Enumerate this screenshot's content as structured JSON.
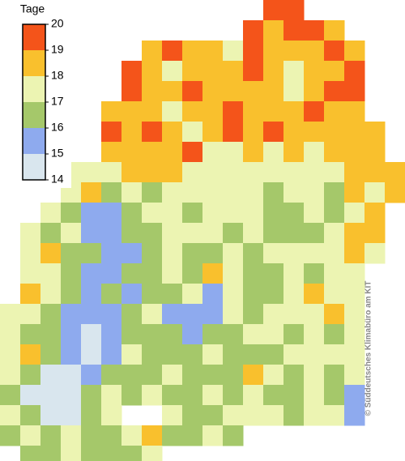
{
  "legend": {
    "title": "Tage",
    "ticks": [
      14,
      15,
      16,
      17,
      18,
      19,
      20
    ],
    "colors": [
      "#d9e6ee",
      "#8eaaee",
      "#a5c86a",
      "#ecf4b2",
      "#f9c02d",
      "#f4541a"
    ]
  },
  "copyright": "© Süddeutsches Klimabüro am KIT",
  "map": {
    "cells": [
      [
        null,
        null,
        null,
        null,
        null,
        null,
        null,
        null,
        null,
        null,
        null,
        null,
        null,
        19.5,
        19.5,
        null,
        null,
        null,
        null,
        null
      ],
      [
        null,
        null,
        null,
        null,
        null,
        null,
        null,
        null,
        null,
        null,
        null,
        null,
        19.5,
        18.5,
        19.5,
        19.5,
        18.5,
        null,
        null,
        null
      ],
      [
        null,
        null,
        null,
        null,
        null,
        null,
        null,
        18.5,
        19.5,
        18.5,
        18.5,
        17.5,
        19.5,
        18.5,
        18.5,
        18.5,
        19.5,
        18.5,
        null,
        null
      ],
      [
        null,
        null,
        null,
        null,
        null,
        null,
        19.5,
        18.5,
        17.5,
        18.5,
        18.5,
        18.5,
        19.5,
        18.5,
        17.5,
        18.5,
        18.5,
        19.5,
        null,
        null
      ],
      [
        null,
        null,
        null,
        null,
        null,
        null,
        19.5,
        18.5,
        18.5,
        19.5,
        18.5,
        18.5,
        18.5,
        18.5,
        17.5,
        18.5,
        19.5,
        19.5,
        null,
        null
      ],
      [
        null,
        null,
        null,
        null,
        null,
        18.5,
        18.5,
        18.5,
        17.5,
        18.5,
        18.5,
        19.5,
        18.5,
        18.5,
        18.5,
        19.5,
        18.5,
        18.5,
        null,
        null
      ],
      [
        null,
        null,
        null,
        null,
        null,
        19.5,
        18.5,
        19.5,
        18.5,
        17.5,
        18.5,
        19.5,
        18.5,
        19.5,
        18.5,
        18.5,
        18.5,
        18.5,
        18.5,
        null
      ],
      [
        null,
        null,
        null,
        null,
        null,
        18.5,
        18.5,
        18.5,
        18.5,
        19.5,
        17.5,
        17.5,
        18.5,
        17.5,
        18.5,
        17.5,
        18.5,
        18.5,
        18.5,
        null
      ],
      [
        null,
        null,
        null,
        17.5,
        17.5,
        17.5,
        18.5,
        18.5,
        18.5,
        17.5,
        17.5,
        17.5,
        17.5,
        17.5,
        17.5,
        17.5,
        17.5,
        18.5,
        18.5,
        18.5
      ],
      [
        null,
        null,
        null,
        17.5,
        18.5,
        16.5,
        17.5,
        16.5,
        17.5,
        17.5,
        17.5,
        17.5,
        17.5,
        16.5,
        17.5,
        17.5,
        16.5,
        18.5,
        17.5,
        18.5
      ],
      [
        null,
        null,
        17.5,
        16.5,
        15.5,
        15.5,
        16.5,
        17.5,
        17.5,
        16.5,
        17.5,
        17.5,
        17.5,
        16.5,
        16.5,
        17.5,
        16.5,
        17.5,
        18.5,
        null
      ],
      [
        null,
        17.5,
        16.5,
        17.5,
        15.5,
        15.5,
        16.5,
        16.5,
        17.5,
        17.5,
        17.5,
        16.5,
        17.5,
        16.5,
        16.5,
        16.5,
        17.5,
        18.5,
        18.5,
        null
      ],
      [
        null,
        17.5,
        18.5,
        16.5,
        16.5,
        15.5,
        15.5,
        16.5,
        17.5,
        16.5,
        16.5,
        17.5,
        16.5,
        17.5,
        17.5,
        17.5,
        17.5,
        18.5,
        17.5,
        null
      ],
      [
        null,
        17.5,
        17.5,
        16.5,
        15.5,
        15.5,
        16.5,
        16.5,
        17.5,
        16.5,
        18.5,
        17.5,
        16.5,
        16.5,
        17.5,
        16.5,
        17.5,
        17.5,
        null,
        null
      ],
      [
        null,
        18.5,
        17.5,
        16.5,
        15.5,
        16.5,
        15.5,
        16.5,
        16.5,
        17.5,
        15.5,
        17.5,
        16.5,
        16.5,
        17.5,
        18.5,
        17.5,
        17.5,
        null,
        null
      ],
      [
        17.5,
        17.5,
        16.5,
        15.5,
        15.5,
        15.5,
        16.5,
        17.5,
        15.5,
        15.5,
        15.5,
        17.5,
        16.5,
        17.5,
        17.5,
        17.5,
        18.5,
        17.5,
        null,
        null
      ],
      [
        17.5,
        16.5,
        16.5,
        15.5,
        14.5,
        15.5,
        16.5,
        16.5,
        16.5,
        15.5,
        16.5,
        16.5,
        17.5,
        17.5,
        16.5,
        17.5,
        16.5,
        17.5,
        null,
        null
      ],
      [
        17.5,
        18.5,
        16.5,
        15.5,
        14.5,
        15.5,
        17.5,
        16.5,
        16.5,
        16.5,
        17.5,
        16.5,
        16.5,
        16.5,
        17.5,
        17.5,
        17.5,
        17.5,
        null,
        null
      ],
      [
        17.5,
        16.5,
        14.5,
        14.5,
        15.5,
        16.5,
        16.5,
        16.5,
        17.5,
        16.5,
        16.5,
        16.5,
        18.5,
        17.5,
        16.5,
        17.5,
        16.5,
        17.5,
        null,
        null
      ],
      [
        16.5,
        14.5,
        14.5,
        14.5,
        16.5,
        17.5,
        16.5,
        17.5,
        16.5,
        16.5,
        17.5,
        16.5,
        17.5,
        16.5,
        16.5,
        17.5,
        16.5,
        15.5,
        null,
        null
      ],
      [
        17.5,
        16.5,
        14.5,
        14.5,
        16.5,
        17.5,
        null,
        null,
        17.5,
        16.5,
        16.5,
        17.5,
        17.5,
        17.5,
        16.5,
        17.5,
        17.5,
        15.5,
        null,
        null
      ],
      [
        16.5,
        17.5,
        16.5,
        17.5,
        16.5,
        16.5,
        17.5,
        18.5,
        16.5,
        16.5,
        17.5,
        16.5,
        null,
        null,
        null,
        null,
        null,
        null,
        null,
        null
      ],
      [
        null,
        16.5,
        16.5,
        17.5,
        16.5,
        16.5,
        16.5,
        17.5,
        null,
        null,
        null,
        null,
        null,
        null,
        null,
        null,
        null,
        null,
        null,
        null
      ]
    ]
  }
}
